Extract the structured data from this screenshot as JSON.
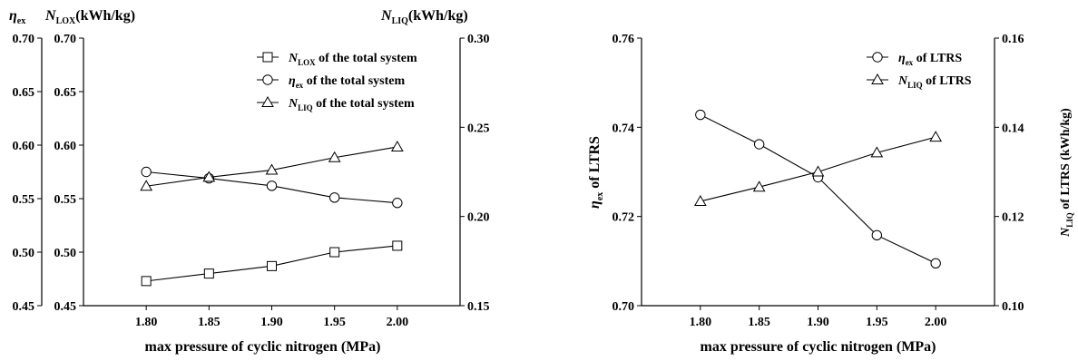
{
  "chart_data": [
    {
      "type": "line",
      "xlabel": "max pressure of cyclic nitrogen (MPa)",
      "x": [
        1.8,
        1.85,
        1.9,
        1.95,
        2.0
      ],
      "x_ticks": [
        "1.80",
        "1.85",
        "1.90",
        "1.95",
        "2.00"
      ],
      "xlim": [
        1.75,
        2.05
      ],
      "axes": {
        "eta": {
          "label_main": "η",
          "label_sub": "ex",
          "ylim": [
            0.45,
            0.7
          ],
          "ticks": [
            "0.45",
            "0.50",
            "0.55",
            "0.60",
            "0.65",
            "0.70"
          ]
        },
        "nlox": {
          "label_main": "N",
          "label_sub": "LOX",
          "label_unit": "(kWh/kg)",
          "ylim": [
            0.45,
            0.7
          ],
          "ticks": [
            "0.45",
            "0.50",
            "0.55",
            "0.60",
            "0.65",
            "0.70"
          ]
        },
        "nliq": {
          "label_main": "N",
          "label_sub": "LIQ",
          "label_unit": "(kWh/kg)",
          "ylim": [
            0.15,
            0.3
          ],
          "ticks": [
            "0.15",
            "0.20",
            "0.25",
            "0.30"
          ]
        }
      },
      "series": [
        {
          "name": "N_LOX of the total system",
          "legend_main": "N",
          "legend_sub": "LOX",
          "legend_rest": " of the total system",
          "marker": "square",
          "axis": "nlox",
          "values": [
            0.473,
            0.48,
            0.487,
            0.5,
            0.506
          ]
        },
        {
          "name": "η_ex of the total system",
          "legend_main": "η",
          "legend_sub": "ex",
          "legend_rest": " of the total system",
          "marker": "circle",
          "axis": "eta",
          "values": [
            0.575,
            0.569,
            0.562,
            0.551,
            0.546
          ]
        },
        {
          "name": "N_LIQ of the total system",
          "legend_main": "N",
          "legend_sub": "LIQ",
          "legend_rest": " of the total system",
          "marker": "triangle",
          "axis": "nliq",
          "values": [
            0.217,
            0.222,
            0.226,
            0.233,
            0.239
          ]
        }
      ],
      "legend_position": "top-right",
      "grid": false
    },
    {
      "type": "line",
      "xlabel": "max pressure of cyclic nitrogen (MPa)",
      "x": [
        1.8,
        1.85,
        1.9,
        1.95,
        2.0
      ],
      "x_ticks": [
        "1.80",
        "1.85",
        "1.90",
        "1.95",
        "2.00"
      ],
      "xlim": [
        1.75,
        2.05
      ],
      "axes": {
        "left": {
          "label_main": "η",
          "label_sub": "ex",
          "label_rest": " of LTRS",
          "ylim": [
            0.7,
            0.76
          ],
          "ticks": [
            "0.70",
            "0.72",
            "0.74",
            "0.76"
          ]
        },
        "right": {
          "label_main": "N",
          "label_sub": "LIQ",
          "label_rest": " of LTRS (kWh/kg)",
          "ylim": [
            0.1,
            0.16
          ],
          "ticks": [
            "0.10",
            "0.12",
            "0.14",
            "0.16"
          ]
        }
      },
      "series": [
        {
          "name": "η_ex of LTRS",
          "legend_main": "η",
          "legend_sub": "ex",
          "legend_rest": " of LTRS",
          "marker": "circle",
          "axis": "left",
          "values": [
            0.7428,
            0.7362,
            0.7288,
            0.7158,
            0.7095
          ]
        },
        {
          "name": "N_LIQ of LTRS",
          "legend_main": "N",
          "legend_sub": "LIQ",
          "legend_rest": " of LTRS",
          "marker": "triangle",
          "axis": "right",
          "values": [
            0.1234,
            0.1266,
            0.13,
            0.1343,
            0.1378
          ]
        }
      ],
      "legend_position": "top-right",
      "grid": false
    }
  ]
}
